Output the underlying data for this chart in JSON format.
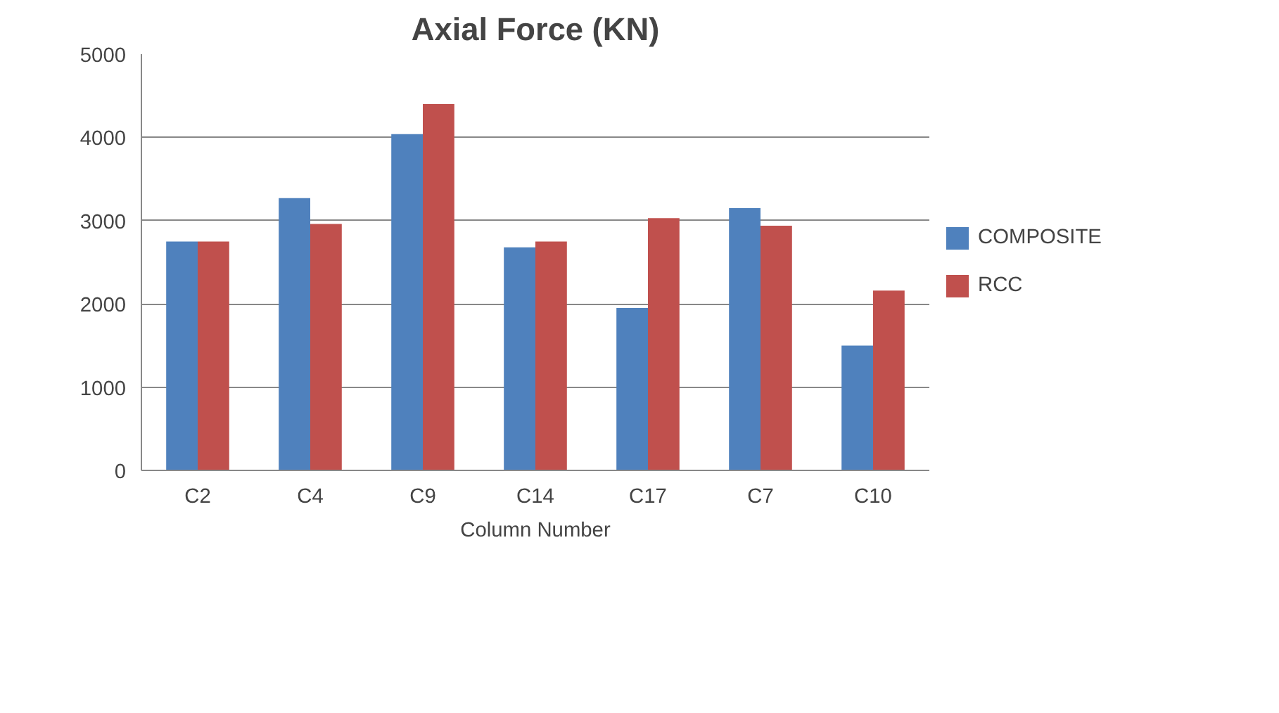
{
  "chart_data": {
    "type": "bar",
    "title": "Axial Force (KN)",
    "xlabel": "Column Number",
    "categories": [
      "C2",
      "C4",
      "C9",
      "C14",
      "C17",
      "C7",
      "C10"
    ],
    "series": [
      {
        "name": "COMPOSITE",
        "color": "#4f81bd",
        "values": [
          2750,
          3270,
          4040,
          2680,
          1950,
          3150,
          1500
        ]
      },
      {
        "name": "RCC",
        "color": "#c0504d",
        "values": [
          2750,
          2960,
          4400,
          2750,
          3030,
          2940,
          2160
        ]
      }
    ],
    "ylim": [
      0,
      5000
    ],
    "yticks": [
      0,
      1000,
      2000,
      3000,
      4000,
      5000
    ],
    "grid": "y",
    "legend": "right"
  }
}
